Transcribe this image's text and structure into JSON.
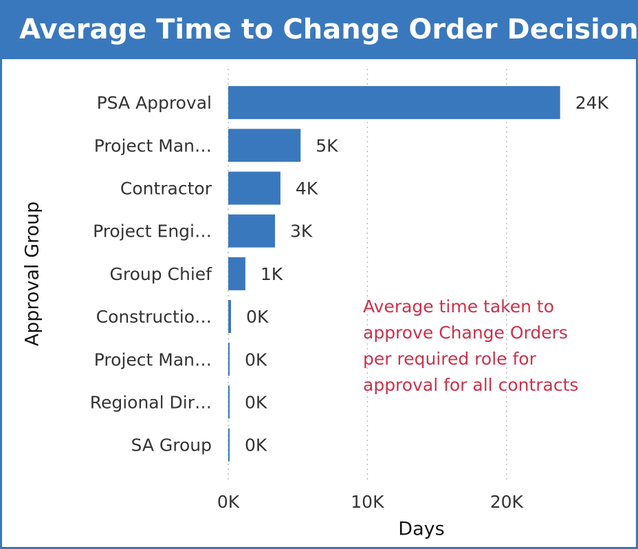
{
  "chart_data": {
    "type": "hbar",
    "title": "Average Time to Change Order Decision",
    "x_label": "Days",
    "y_label": "Approval Group",
    "categories": [
      "PSA Approval",
      "Project Man…",
      "Contractor",
      "Project Engi…",
      "Group Chief",
      "Constructio…",
      "Project Man…",
      "Regional Dir…",
      "SA Group"
    ],
    "values": [
      23850,
      5200,
      3750,
      3360,
      1230,
      200,
      50,
      30,
      20
    ],
    "value_labels": [
      "24K",
      "5K",
      "4K",
      "3K",
      "1K",
      "0K",
      "0K",
      "0K",
      "0K"
    ],
    "color": "#3a78bd",
    "xlim": [
      0,
      25000
    ],
    "xticks": [
      {
        "value": 0,
        "label": "0K"
      },
      {
        "value": 10000,
        "label": "10K"
      },
      {
        "value": 20000,
        "label": "20K"
      }
    ],
    "grid": true,
    "annotation": [
      "Average time taken to",
      "approve Change Orders",
      "per required role for",
      "approval for all contracts"
    ]
  }
}
